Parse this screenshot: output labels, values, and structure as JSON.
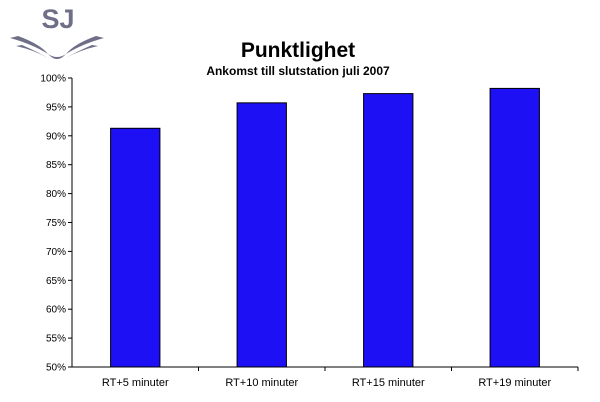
{
  "logo": {
    "text": "SJ"
  },
  "chart_data": {
    "type": "bar",
    "title": "Punktlighet",
    "subtitle": "Ankomst till slutstation juli 2007",
    "categories": [
      "RT+5 minuter",
      "RT+10 minuter",
      "RT+15 minuter",
      "RT+19 minuter"
    ],
    "values": [
      91.3,
      95.7,
      97.3,
      98.2
    ],
    "ylim": [
      50,
      100
    ],
    "yticks": [
      50,
      55,
      60,
      65,
      70,
      75,
      80,
      85,
      90,
      95,
      100
    ],
    "ytick_suffix": "%",
    "grid": false,
    "legend": "none",
    "bar_color": "#1e10f5",
    "bar_edge_color": "#000000"
  }
}
